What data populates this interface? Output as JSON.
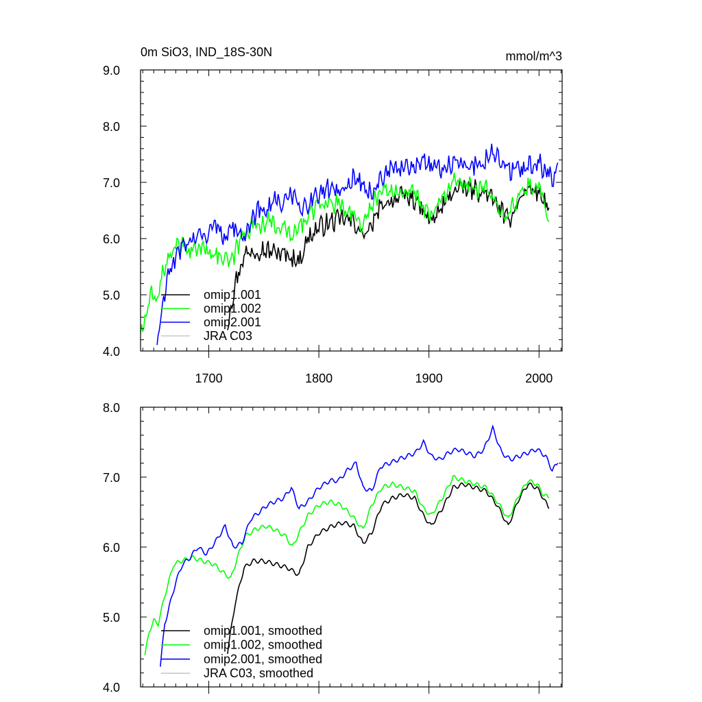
{
  "chart_data": [
    {
      "type": "line",
      "title": "0m SiO3, IND_18S-30N",
      "units": "mmol/m^3",
      "xlabel": "",
      "ylabel": "",
      "xlim": [
        1638,
        2021
      ],
      "ylim": [
        4.0,
        9.0
      ],
      "x_ticks": [
        1700,
        1800,
        1900,
        2000
      ],
      "x_tick_labels": [
        "1700",
        "1800",
        "1900",
        "2000"
      ],
      "y_ticks": [
        4.0,
        5.0,
        6.0,
        7.0,
        8.0,
        9.0
      ],
      "y_tick_labels": [
        "4.0",
        "5.0",
        "6.0",
        "7.0",
        "8.0",
        "9.0"
      ],
      "grid": false,
      "legend_position": "bottom-left",
      "noisy": true,
      "series": [
        {
          "name": "omip1.001",
          "color": "#000000",
          "x": [
            1717,
            1724,
            1732,
            1740,
            1750,
            1762,
            1772,
            1782,
            1790,
            1800,
            1812,
            1822,
            1832,
            1840,
            1848,
            1857,
            1867,
            1877,
            1887,
            1895,
            1902,
            1912,
            1922,
            1932,
            1942,
            1952,
            1962,
            1972,
            1982,
            1990,
            1998,
            2004,
            2009
          ],
          "y": [
            4.5,
            5.2,
            5.7,
            5.8,
            5.8,
            5.75,
            5.7,
            5.6,
            6.0,
            6.2,
            6.3,
            6.35,
            6.3,
            6.05,
            6.2,
            6.6,
            6.7,
            6.75,
            6.7,
            6.45,
            6.3,
            6.55,
            6.85,
            6.9,
            6.85,
            6.8,
            6.6,
            6.3,
            6.7,
            6.9,
            6.85,
            6.7,
            6.55
          ]
        },
        {
          "name": "omip1.002",
          "color": "#00ff00",
          "x": [
            1638,
            1643,
            1648,
            1652,
            1657,
            1662,
            1668,
            1675,
            1685,
            1695,
            1705,
            1712,
            1720,
            1726,
            1733,
            1742,
            1752,
            1760,
            1770,
            1776,
            1782,
            1790,
            1800,
            1810,
            1820,
            1830,
            1840,
            1848,
            1857,
            1867,
            1877,
            1887,
            1895,
            1902,
            1912,
            1922,
            1932,
            1942,
            1952,
            1962,
            1972,
            1982,
            1990,
            1998,
            2004,
            2009
          ],
          "y": [
            4.3,
            4.6,
            5.0,
            4.9,
            5.3,
            5.6,
            5.8,
            5.85,
            5.8,
            5.85,
            5.75,
            5.65,
            5.55,
            5.85,
            6.15,
            6.25,
            6.3,
            6.25,
            6.15,
            6.0,
            6.2,
            6.4,
            6.6,
            6.65,
            6.6,
            6.45,
            6.25,
            6.6,
            6.85,
            6.9,
            6.85,
            6.8,
            6.55,
            6.45,
            6.7,
            7.0,
            6.95,
            6.9,
            6.85,
            6.65,
            6.4,
            6.75,
            6.95,
            6.9,
            6.75,
            6.3
          ]
        },
        {
          "name": "omip2.001",
          "color": "#0000ff",
          "x": [
            1653,
            1658,
            1663,
            1668,
            1675,
            1683,
            1690,
            1698,
            1707,
            1715,
            1722,
            1730,
            1738,
            1746,
            1753,
            1760,
            1768,
            1775,
            1782,
            1790,
            1800,
            1810,
            1818,
            1826,
            1834,
            1840,
            1848,
            1856,
            1864,
            1872,
            1880,
            1888,
            1895,
            1902,
            1910,
            1918,
            1926,
            1934,
            1942,
            1950,
            1958,
            1966,
            1974,
            1982,
            1990,
            1998,
            2006,
            2012,
            2017
          ],
          "y": [
            4.1,
            4.8,
            5.3,
            5.6,
            5.85,
            5.95,
            6.0,
            6.1,
            6.2,
            6.05,
            6.25,
            6.0,
            6.35,
            6.5,
            6.55,
            6.7,
            6.6,
            6.85,
            6.5,
            6.6,
            6.8,
            6.9,
            6.85,
            7.0,
            7.1,
            6.9,
            6.8,
            7.1,
            7.2,
            7.2,
            7.3,
            7.3,
            7.45,
            7.3,
            7.25,
            7.3,
            7.35,
            7.3,
            7.3,
            7.35,
            7.6,
            7.35,
            7.2,
            7.25,
            7.3,
            7.35,
            7.25,
            7.05,
            7.35
          ]
        },
        {
          "name": "JRA C03",
          "color": "#c8c8c8",
          "x": [],
          "y": []
        }
      ]
    },
    {
      "type": "line",
      "title": "",
      "xlabel": "",
      "ylabel": "",
      "xlim": [
        1638,
        2021
      ],
      "ylim": [
        4.0,
        8.0
      ],
      "x_ticks": [
        1700,
        1800,
        1900,
        2000
      ],
      "x_tick_labels": [],
      "y_ticks": [
        4.0,
        5.0,
        6.0,
        7.0,
        8.0
      ],
      "y_tick_labels": [
        "4.0",
        "5.0",
        "6.0",
        "7.0",
        "8.0"
      ],
      "grid": false,
      "legend_position": "bottom-left",
      "noisy": false,
      "series": [
        {
          "name": "omip1.001, smoothed",
          "color": "#000000",
          "x": [
            1717,
            1724,
            1732,
            1740,
            1750,
            1762,
            1772,
            1782,
            1790,
            1800,
            1812,
            1822,
            1832,
            1840,
            1848,
            1857,
            1867,
            1877,
            1887,
            1895,
            1902,
            1912,
            1922,
            1932,
            1942,
            1952,
            1962,
            1972,
            1982,
            1990,
            1998,
            2004,
            2009
          ],
          "y": [
            4.5,
            5.2,
            5.7,
            5.8,
            5.8,
            5.75,
            5.7,
            5.6,
            6.0,
            6.2,
            6.3,
            6.35,
            6.3,
            6.05,
            6.2,
            6.6,
            6.7,
            6.75,
            6.7,
            6.45,
            6.3,
            6.55,
            6.85,
            6.9,
            6.85,
            6.8,
            6.6,
            6.3,
            6.7,
            6.9,
            6.85,
            6.7,
            6.55
          ]
        },
        {
          "name": "omip1.002, smoothed",
          "color": "#00ff00",
          "x": [
            1642,
            1646,
            1650,
            1654,
            1660,
            1668,
            1675,
            1685,
            1695,
            1705,
            1712,
            1720,
            1726,
            1733,
            1742,
            1752,
            1760,
            1770,
            1776,
            1782,
            1790,
            1800,
            1810,
            1820,
            1830,
            1840,
            1848,
            1857,
            1867,
            1877,
            1887,
            1895,
            1902,
            1912,
            1922,
            1932,
            1942,
            1952,
            1962,
            1972,
            1982,
            1990,
            1998,
            2004,
            2009
          ],
          "y": [
            4.45,
            4.8,
            4.95,
            4.9,
            5.3,
            5.75,
            5.8,
            5.85,
            5.8,
            5.75,
            5.65,
            5.55,
            5.85,
            6.15,
            6.25,
            6.3,
            6.25,
            6.15,
            6.0,
            6.2,
            6.45,
            6.6,
            6.65,
            6.6,
            6.45,
            6.25,
            6.6,
            6.85,
            6.9,
            6.85,
            6.8,
            6.55,
            6.45,
            6.7,
            7.0,
            6.95,
            6.9,
            6.85,
            6.65,
            6.4,
            6.75,
            6.95,
            6.9,
            6.75,
            6.7
          ]
        },
        {
          "name": "omip2.001, smoothed",
          "color": "#0000ff",
          "x": [
            1656,
            1660,
            1665,
            1670,
            1676,
            1683,
            1690,
            1698,
            1707,
            1715,
            1722,
            1730,
            1738,
            1746,
            1753,
            1760,
            1768,
            1775,
            1782,
            1790,
            1800,
            1810,
            1818,
            1826,
            1834,
            1840,
            1848,
            1856,
            1864,
            1872,
            1880,
            1888,
            1895,
            1902,
            1910,
            1918,
            1926,
            1934,
            1942,
            1950,
            1958,
            1966,
            1974,
            1982,
            1990,
            1998,
            2006,
            2012,
            2017
          ],
          "y": [
            4.3,
            4.9,
            5.2,
            5.5,
            5.75,
            5.85,
            6.0,
            5.9,
            6.1,
            6.3,
            6.0,
            6.05,
            6.4,
            6.5,
            6.6,
            6.65,
            6.7,
            6.85,
            6.55,
            6.65,
            6.85,
            6.95,
            6.95,
            7.1,
            7.2,
            6.85,
            6.8,
            7.15,
            7.2,
            7.25,
            7.3,
            7.35,
            7.5,
            7.3,
            7.25,
            7.35,
            7.4,
            7.35,
            7.3,
            7.4,
            7.7,
            7.35,
            7.25,
            7.3,
            7.35,
            7.4,
            7.3,
            7.1,
            7.2
          ]
        },
        {
          "name": "JRA C03, smoothed",
          "color": "#c8c8c8",
          "x": [],
          "y": []
        }
      ]
    }
  ]
}
